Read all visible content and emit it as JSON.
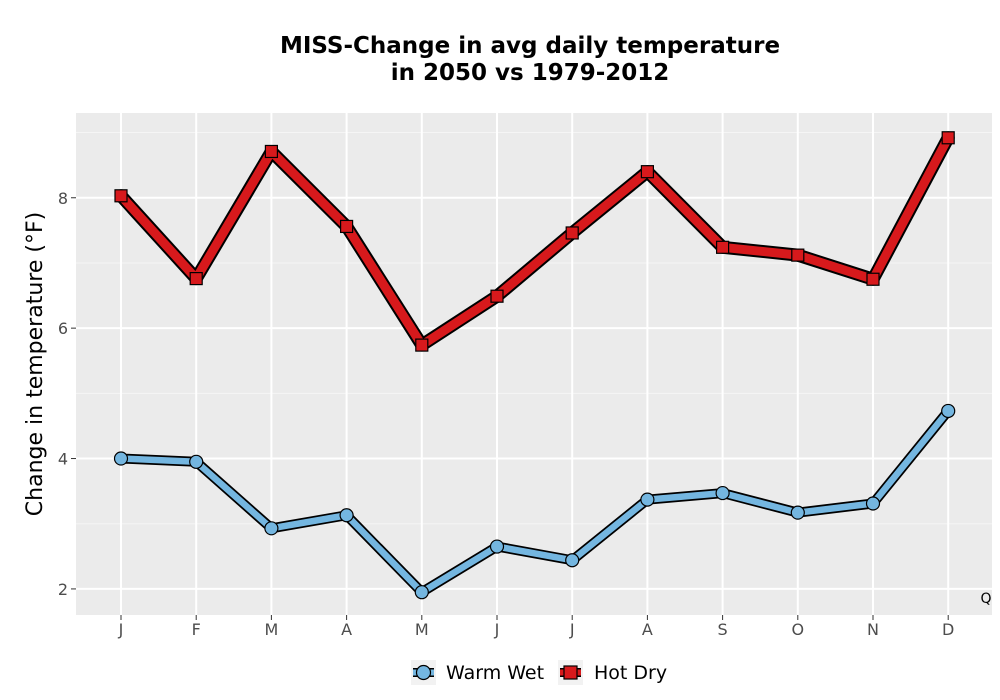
{
  "chart_data": {
    "type": "line",
    "title_line1": "MISS-Change in avg daily temperature",
    "title_line2": "in 2050 vs 1979-2012",
    "xlabel": "",
    "ylabel": "Change in temperature (°F)",
    "categories": [
      "J",
      "F",
      "M",
      "A",
      "M",
      "J",
      "J",
      "A",
      "S",
      "O",
      "N",
      "D"
    ],
    "ylim": [
      1.6,
      9.3
    ],
    "yticks": [
      2,
      4,
      6,
      8
    ],
    "grid": true,
    "legend_position": "bottom",
    "corner_label": "Q",
    "series": [
      {
        "name": "Warm Wet",
        "marker": "circle",
        "color": "#74b6e0",
        "values": [
          4.0,
          3.95,
          2.93,
          3.13,
          1.95,
          2.65,
          2.44,
          3.37,
          3.47,
          3.17,
          3.31,
          4.73
        ]
      },
      {
        "name": "Hot Dry",
        "marker": "square",
        "color": "#d7191c",
        "values": [
          8.03,
          6.76,
          8.71,
          7.56,
          5.74,
          6.49,
          7.46,
          8.4,
          7.24,
          7.12,
          6.75,
          8.92
        ]
      }
    ]
  }
}
